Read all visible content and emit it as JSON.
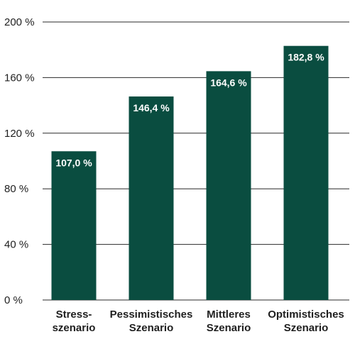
{
  "chart_data": {
    "type": "bar",
    "categories": [
      [
        "Stress-",
        "szenario"
      ],
      [
        "Pessimistisches",
        "Szenario"
      ],
      [
        "Mittleres",
        "Szenario"
      ],
      [
        "Optimistisches",
        "Szenario"
      ]
    ],
    "values": [
      107.0,
      146.4,
      164.6,
      182.8
    ],
    "data_labels": [
      "107,0 %",
      "146,4 %",
      "164,6 %",
      "182,8 %"
    ],
    "yticks": [
      0,
      40,
      80,
      120,
      160,
      200
    ],
    "ytick_labels": [
      "0 %",
      "40 %",
      "80 %",
      "120 %",
      "160 %",
      "200 %"
    ],
    "ylim": [
      0,
      200
    ],
    "grid": true,
    "title": "",
    "xlabel": "",
    "ylabel": "",
    "colors": {
      "bar": "#0a4d40",
      "grid": "#2a2a2a",
      "text": "#1f1f1f",
      "data_label": "#ffffff"
    }
  }
}
